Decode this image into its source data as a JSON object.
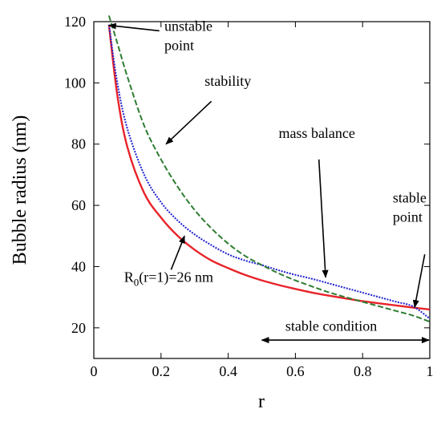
{
  "chart_data": {
    "type": "line",
    "xlabel": "r",
    "ylabel": "Bubble radius (nm)",
    "xlim": [
      0,
      1
    ],
    "ylim": [
      10,
      120
    ],
    "xticks": [
      0,
      0.2,
      0.4,
      0.6,
      0.8,
      1
    ],
    "yticks": [
      20,
      40,
      60,
      80,
      100,
      120
    ],
    "xtick_labels": [
      "0",
      "0.2",
      "0.4",
      "0.6",
      "0.8",
      "1"
    ],
    "ytick_labels": [
      "20",
      "40",
      "60",
      "80",
      "100",
      "120"
    ],
    "grid": false,
    "series": [
      {
        "name": "R0(r=1)=26 nm",
        "color": "#e8232a",
        "style": "solid",
        "x": [
          0.045,
          0.07,
          0.1,
          0.15,
          0.2,
          0.25,
          0.3,
          0.35,
          0.4,
          0.45,
          0.5,
          0.55,
          0.6,
          0.65,
          0.7,
          0.75,
          0.8,
          0.85,
          0.9,
          0.95,
          1.0
        ],
        "y": [
          119,
          96,
          79,
          64,
          56,
          50,
          45.5,
          42,
          39.5,
          37.3,
          35.5,
          34,
          32.7,
          31.5,
          30.5,
          29.6,
          28.7,
          28,
          27.3,
          26.6,
          26
        ]
      },
      {
        "name": "mass balance",
        "color": "#1f1fcf",
        "style": "dotted",
        "x": [
          0.045,
          0.07,
          0.1,
          0.15,
          0.2,
          0.25,
          0.3,
          0.35,
          0.4,
          0.45,
          0.5,
          0.55,
          0.6,
          0.65,
          0.7,
          0.75,
          0.8,
          0.85,
          0.9,
          0.95,
          1.0
        ],
        "y": [
          119,
          100,
          85,
          70,
          61,
          55,
          50.5,
          47,
          44,
          42,
          40.5,
          38.8,
          37.3,
          36,
          34.5,
          33,
          31.5,
          30,
          28.5,
          27,
          23
        ]
      },
      {
        "name": "stability",
        "color": "#2e7d32",
        "style": "dashed",
        "x": [
          0.045,
          0.07,
          0.1,
          0.15,
          0.2,
          0.25,
          0.3,
          0.35,
          0.4,
          0.45,
          0.5,
          0.55,
          0.6,
          0.65,
          0.7,
          0.75,
          0.8,
          0.85,
          0.9,
          0.95,
          1.0
        ],
        "y": [
          122,
          113,
          102,
          86,
          75,
          66,
          58.5,
          52.5,
          47.5,
          43.5,
          40.5,
          37.8,
          35.5,
          33.5,
          31.6,
          30,
          28.5,
          27,
          25.5,
          24,
          22
        ]
      }
    ],
    "annotations": [
      {
        "id": "unstable",
        "lines": [
          "unstable",
          "point"
        ],
        "text_at": [
          0.21,
          117
        ],
        "arrow_from": [
          0.195,
          117
        ],
        "arrow_to": [
          0.045,
          118.8
        ]
      },
      {
        "id": "stability",
        "lines": [
          "stability"
        ],
        "text_at": [
          0.33,
          99
        ],
        "arrow_from": [
          0.35,
          94
        ],
        "arrow_to": [
          0.215,
          80
        ]
      },
      {
        "id": "mass",
        "lines": [
          "mass balance"
        ],
        "text_at": [
          0.55,
          82
        ],
        "arrow_from": [
          0.67,
          75
        ],
        "arrow_to": [
          0.69,
          36.5
        ]
      },
      {
        "id": "stable",
        "lines": [
          "stable",
          "point"
        ],
        "text_at": [
          0.89,
          61
        ],
        "arrow_from": [
          0.985,
          44
        ],
        "arrow_to": [
          0.955,
          26.7
        ]
      },
      {
        "id": "r0",
        "prefix": "R",
        "subscript": "0",
        "suffix": "(r=1)=26 nm",
        "text_at": [
          0.09,
          35
        ],
        "arrow_from": [
          0.23,
          39
        ],
        "arrow_to": [
          0.27,
          50
        ]
      }
    ],
    "stable_condition": {
      "label": "stable condition",
      "from": 0.5,
      "to": 1.0,
      "y": 16,
      "label_at": [
        0.57,
        19
      ]
    }
  }
}
